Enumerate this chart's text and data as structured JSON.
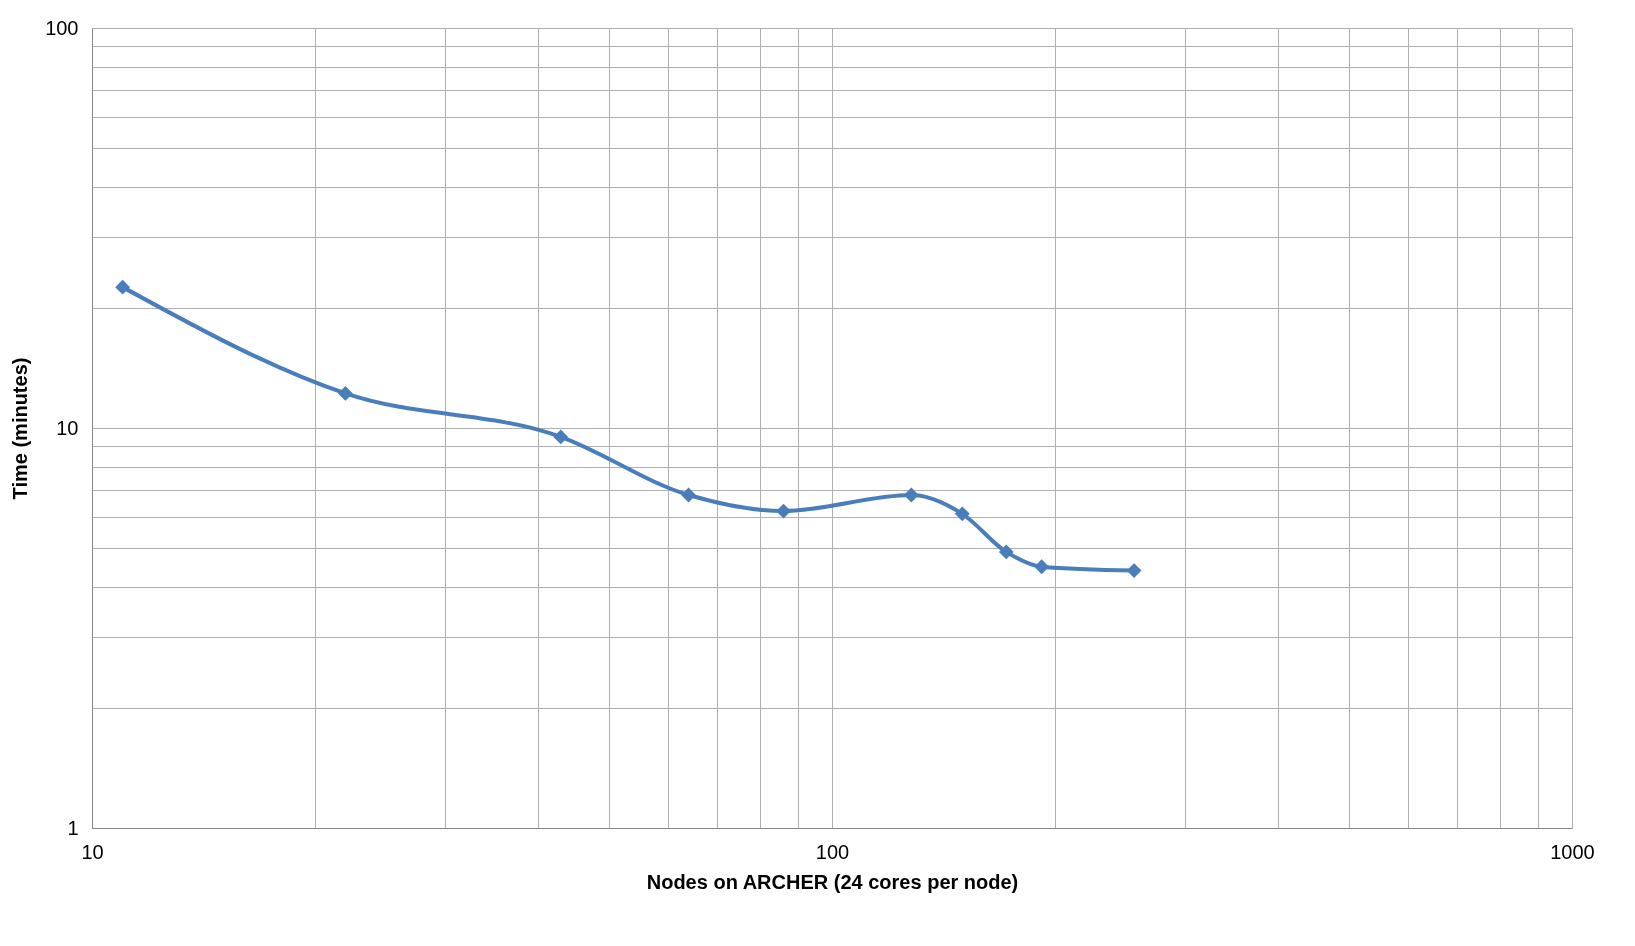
{
  "chart_data": {
    "type": "line",
    "xlabel": "Nodes on ARCHER (24 cores per node)",
    "ylabel": "Time  (minutes)",
    "x": [
      11,
      22,
      43,
      64,
      86,
      128,
      150,
      172,
      192,
      256
    ],
    "series": [
      {
        "color": "#4a7ebb",
        "values": [
          22.5,
          12.2,
          9.5,
          6.8,
          6.2,
          6.8,
          6.1,
          4.9,
          4.5,
          4.4
        ]
      }
    ],
    "log": "xy",
    "xlim": [
      10,
      1000
    ],
    "ylim": [
      1,
      100
    ],
    "xticks": [
      10,
      {
        "value": 20,
        "label": null
      },
      {
        "value": 30,
        "label": null
      },
      {
        "value": 40,
        "label": null
      },
      {
        "value": 50,
        "label": null
      },
      {
        "value": 60,
        "label": null
      },
      {
        "value": 70,
        "label": null
      },
      {
        "value": 80,
        "label": null
      },
      {
        "value": 90,
        "label": null
      },
      100,
      {
        "value": 200,
        "label": null
      },
      {
        "value": 300,
        "label": null
      },
      {
        "value": 400,
        "label": null
      },
      {
        "value": 500,
        "label": null
      },
      {
        "value": 600,
        "label": null
      },
      {
        "value": 700,
        "label": null
      },
      {
        "value": 800,
        "label": null
      },
      {
        "value": 900,
        "label": null
      },
      1000
    ],
    "yticks": [
      1,
      {
        "value": 2,
        "label": null
      },
      {
        "value": 3,
        "label": null
      },
      {
        "value": 4,
        "label": null
      },
      {
        "value": 5,
        "label": null
      },
      {
        "value": 6,
        "label": null
      },
      {
        "value": 7,
        "label": null
      },
      {
        "value": 8,
        "label": null
      },
      {
        "value": 9,
        "label": null
      },
      10,
      {
        "value": 20,
        "label": null
      },
      {
        "value": 30,
        "label": null
      },
      {
        "value": 40,
        "label": null
      },
      {
        "value": 50,
        "label": null
      },
      {
        "value": 60,
        "label": null
      },
      {
        "value": 70,
        "label": null
      },
      {
        "value": 80,
        "label": null
      },
      {
        "value": 90,
        "label": null
      },
      100
    ],
    "grid": true,
    "marker": "diamond",
    "line_style": "solid"
  }
}
